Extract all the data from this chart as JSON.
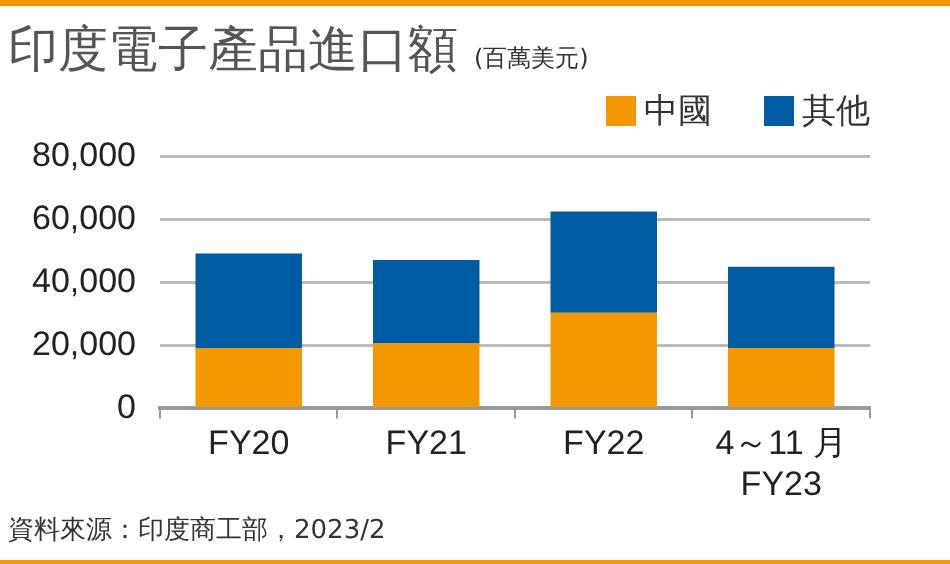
{
  "chart_data": {
    "type": "bar",
    "title": "印度電子產品進口額",
    "subtitle": "(百萬美元)",
    "categories": [
      "FY20",
      "FY21",
      "FY22",
      "4～11 月\nFY23"
    ],
    "series": [
      {
        "name": "中國",
        "color": "#f39800",
        "values": [
          19200,
          20600,
          30400,
          19200
        ]
      },
      {
        "name": "其他",
        "color": "#005ca2",
        "values": [
          30000,
          26500,
          32100,
          25800
        ]
      }
    ],
    "stacked": true,
    "ylim": [
      0,
      80000
    ],
    "yticks": [
      0,
      {
        "value": 20000,
        "label": "20,000"
      },
      {
        "value": 40000,
        "label": "40,000"
      },
      {
        "value": 60000,
        "label": "60,000"
      },
      {
        "value": 80000,
        "label": "80,000"
      }
    ],
    "grid": "y",
    "legend": "top right",
    "annotations": [
      "資料來源：印度商工部，2023/2"
    ]
  }
}
